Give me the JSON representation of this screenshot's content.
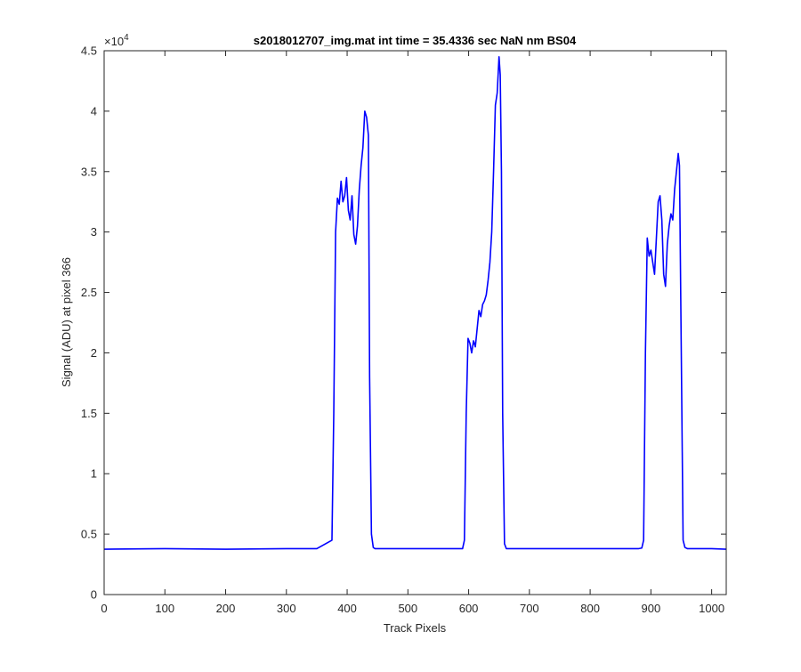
{
  "chart_data": {
    "type": "line",
    "title": "s2018012707_img.mat int time = 35.4336 sec  NaN nm BS04",
    "xlabel": "Track Pixels",
    "ylabel": "Signal (ADU) at pixel 366",
    "y_exponent_label": "×10",
    "y_exponent_power": "4",
    "xlim": [
      0,
      1024
    ],
    "ylim": [
      0,
      45000
    ],
    "x_ticks": [
      0,
      100,
      200,
      300,
      400,
      500,
      600,
      700,
      800,
      900,
      1000
    ],
    "x_tick_labels": [
      "0",
      "100",
      "200",
      "300",
      "400",
      "500",
      "600",
      "700",
      "800",
      "900",
      "1000"
    ],
    "y_ticks": [
      0,
      5000,
      10000,
      15000,
      20000,
      25000,
      30000,
      35000,
      40000,
      45000
    ],
    "y_tick_labels": [
      "0",
      "0.5",
      "1",
      "1.5",
      "2",
      "2.5",
      "3",
      "3.5",
      "4",
      "4.5"
    ],
    "grid": false,
    "series_color": "#0000ff",
    "series": [
      {
        "x": [
          0,
          100,
          200,
          300,
          350,
          375,
          378,
          381,
          384,
          387,
          390,
          393,
          396,
          399,
          402,
          405,
          408,
          411,
          414,
          417,
          420,
          423,
          426,
          429,
          432,
          435,
          437,
          440,
          443,
          446,
          500,
          550,
          590,
          593,
          596,
          599,
          602,
          605,
          608,
          611,
          614,
          617,
          620,
          623,
          626,
          629,
          632,
          635,
          638,
          641,
          644,
          647,
          650,
          652,
          654,
          656,
          659,
          662,
          700,
          800,
          850,
          880,
          885,
          888,
          891,
          894,
          897,
          900,
          903,
          906,
          909,
          912,
          915,
          918,
          921,
          924,
          927,
          930,
          933,
          936,
          939,
          942,
          945,
          947,
          950,
          953,
          956,
          960,
          1000,
          1024
        ],
        "y": [
          3750,
          3800,
          3750,
          3800,
          3800,
          4500,
          15000,
          30000,
          32800,
          32300,
          34200,
          32500,
          33000,
          34500,
          31800,
          31000,
          33000,
          29800,
          29000,
          30500,
          33500,
          35500,
          37000,
          40000,
          39500,
          38000,
          18000,
          5000,
          3900,
          3800,
          3800,
          3800,
          3800,
          4500,
          15000,
          21200,
          20800,
          20000,
          21000,
          20500,
          22000,
          23500,
          23000,
          24000,
          24300,
          24800,
          26000,
          27500,
          30000,
          35000,
          40500,
          41500,
          44500,
          43000,
          35000,
          15000,
          4200,
          3800,
          3800,
          3800,
          3800,
          3800,
          3850,
          4500,
          20000,
          29500,
          28000,
          28500,
          27500,
          26500,
          29500,
          32500,
          33000,
          31000,
          26500,
          25500,
          29000,
          30500,
          31500,
          31000,
          33500,
          35000,
          36500,
          35500,
          20000,
          4500,
          3900,
          3800,
          3800,
          3750
        ]
      }
    ]
  }
}
